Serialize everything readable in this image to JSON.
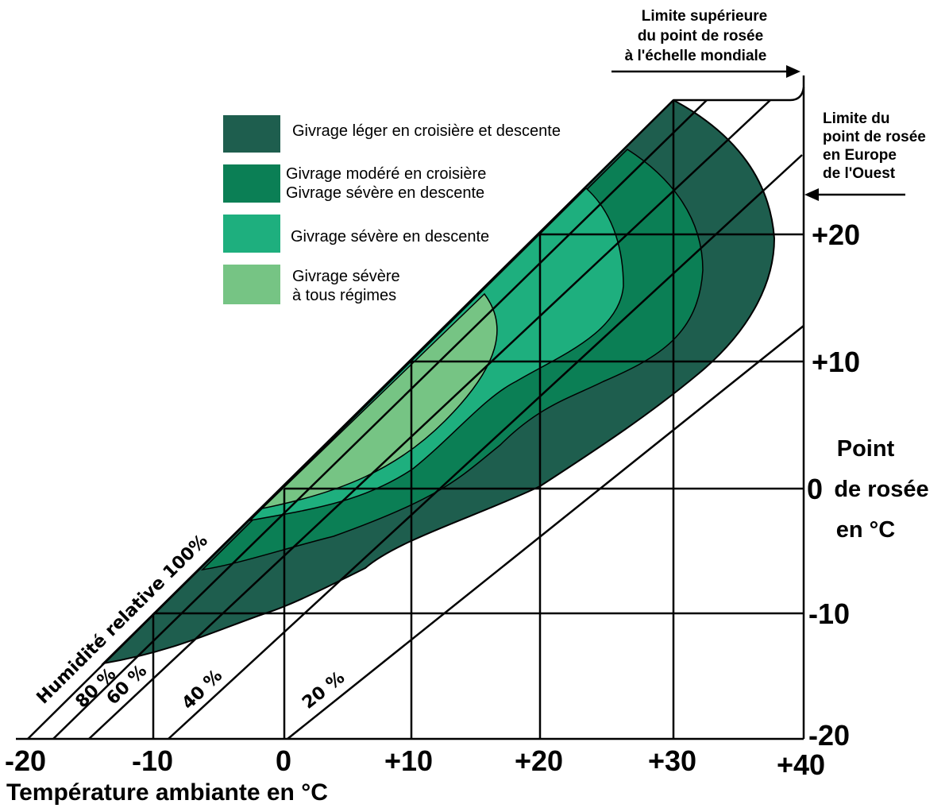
{
  "colors": {
    "zone_light": "#1e5e4e",
    "zone_moderate": "#0b7f55",
    "zone_severe_descent": "#1eaf7e",
    "zone_severe_all": "#76c484",
    "lines": "#000000",
    "background": "#ffffff"
  },
  "legend": [
    {
      "key": "light",
      "lines": [
        "Givrage léger en croisière et descente"
      ]
    },
    {
      "key": "moderate",
      "lines": [
        "Givrage modéré en croisière",
        "Givrage sévère en descente"
      ]
    },
    {
      "key": "severe_descent",
      "lines": [
        "Givrage sévère en descente"
      ]
    },
    {
      "key": "severe_all",
      "lines": [
        "Givrage sévère",
        "à tous régimes"
      ]
    }
  ],
  "annotations": {
    "world_limit": [
      "Limite supérieure",
      "du point de rosée",
      "à l'échelle mondiale"
    ],
    "europe_limit": [
      "Limite du",
      "point de rosée",
      "en Europe",
      "de l'Ouest"
    ]
  },
  "x_axis": {
    "title": "Température ambiante en °C",
    "ticks": [
      "-20",
      "-10",
      "0",
      "+10",
      "+20",
      "+30",
      "+40"
    ]
  },
  "y_axis": {
    "title": [
      "Point",
      "de rosée",
      "en °C"
    ],
    "ticks": [
      "+20",
      "+10",
      "0",
      "-10",
      "-20"
    ]
  },
  "humidity_lines": {
    "rh100": "Humidité relative 100%",
    "rh80": "80 %",
    "rh60": "60 %",
    "rh40": "40 %",
    "rh20": "20 %"
  }
}
